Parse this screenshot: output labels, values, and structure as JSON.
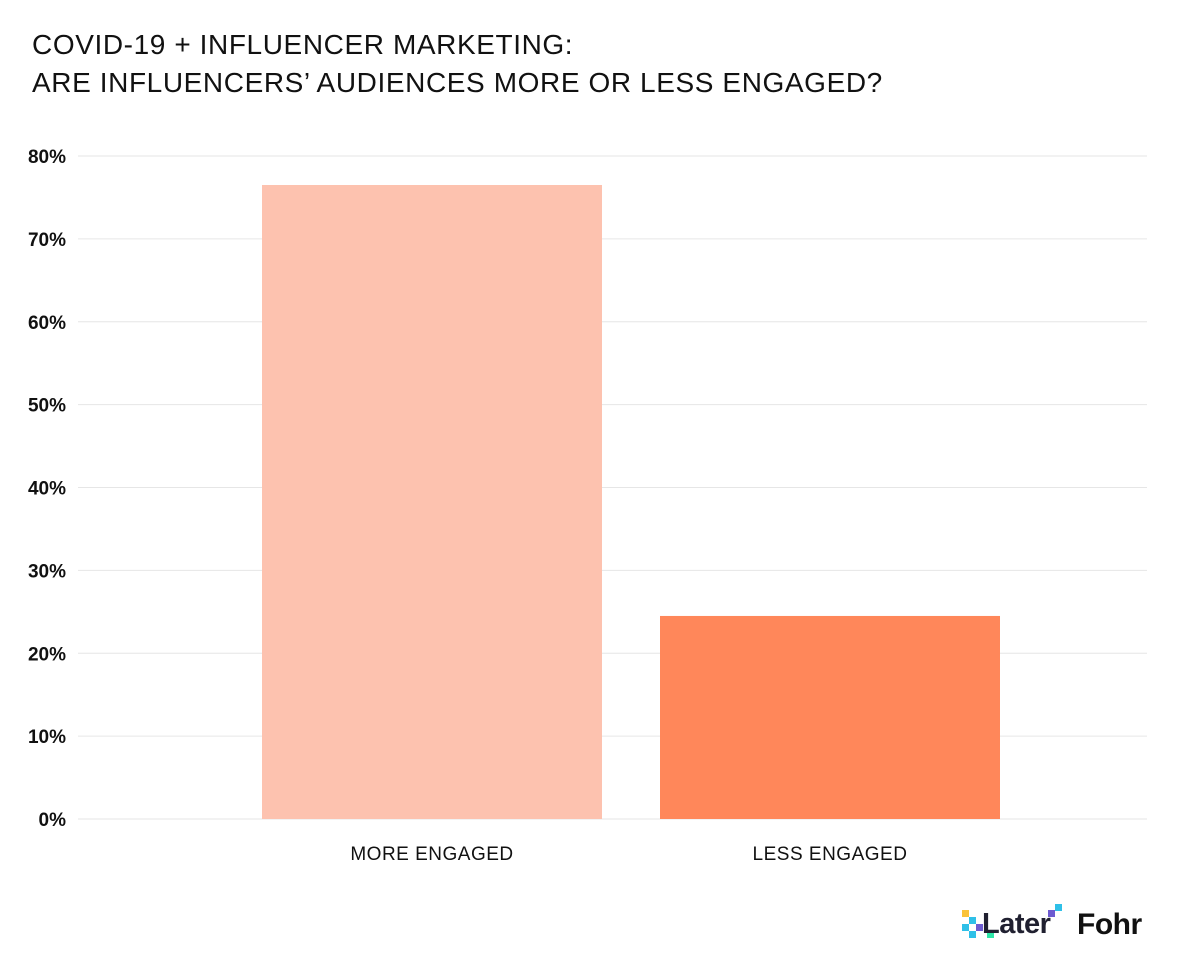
{
  "title_line1": "COVID-19 + INFLUENCER MARKETING:",
  "title_line2": "ARE INFLUENCERS’ AUDIENCES MORE OR LESS ENGAGED?",
  "logos": {
    "later": "Later",
    "fohr": "Fohr"
  },
  "colors": {
    "bar_more": "#FDC2AF",
    "bar_less": "#FF875A",
    "grid": "#E6E6E6",
    "text": "#111111"
  },
  "chart_data": {
    "type": "bar",
    "categories": [
      "MORE ENGAGED",
      "LESS ENGAGED"
    ],
    "values": [
      76.5,
      24.5
    ],
    "bar_colors": [
      "#FDC2AF",
      "#FF875A"
    ],
    "ylim": [
      0,
      80
    ],
    "yticks": [
      0,
      10,
      20,
      30,
      40,
      50,
      60,
      70,
      80
    ],
    "ytick_labels": [
      "0%",
      "10%",
      "20%",
      "30%",
      "40%",
      "50%",
      "60%",
      "70%",
      "80%"
    ],
    "xlabel": "",
    "ylabel": "",
    "grid": true,
    "legend": "none"
  }
}
